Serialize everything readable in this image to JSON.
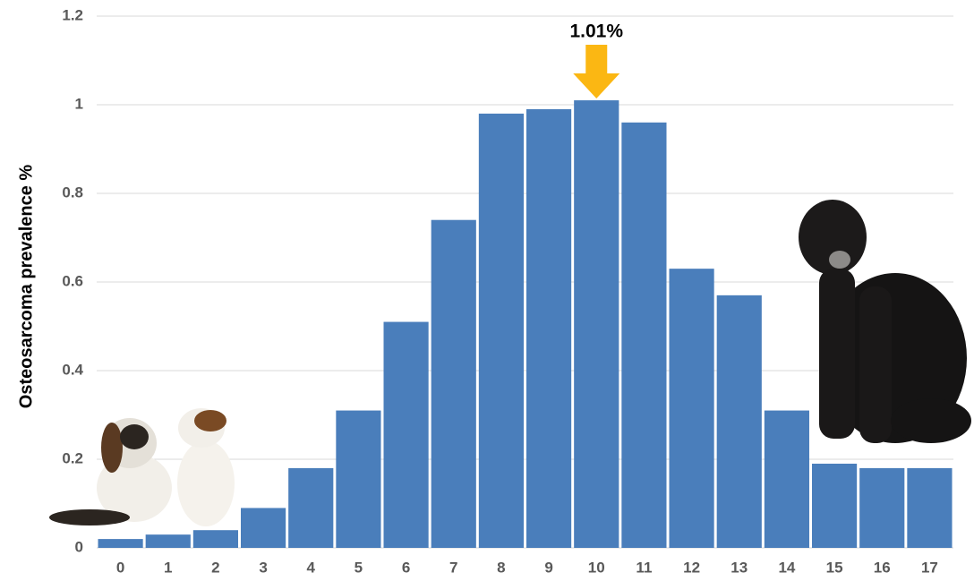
{
  "chart_data": {
    "type": "bar",
    "y_label": "Osteosarcoma prevalence %",
    "annotation": "1.01%",
    "categories": [
      "0",
      "1",
      "2",
      "3",
      "4",
      "5",
      "6",
      "7",
      "8",
      "9",
      "10",
      "11",
      "12",
      "13",
      "14",
      "15",
      "16",
      "17"
    ],
    "values": [
      0.02,
      0.03,
      0.04,
      0.09,
      0.18,
      0.31,
      0.51,
      0.74,
      0.98,
      0.99,
      1.01,
      0.96,
      0.63,
      0.57,
      0.31,
      0.19,
      0.18,
      0.18
    ],
    "color": "#4a7ebb",
    "ylim": [
      0,
      1.2
    ],
    "yticks": [
      0,
      0.2,
      0.4,
      0.6,
      0.8,
      1,
      1.2
    ],
    "grid": true
  }
}
